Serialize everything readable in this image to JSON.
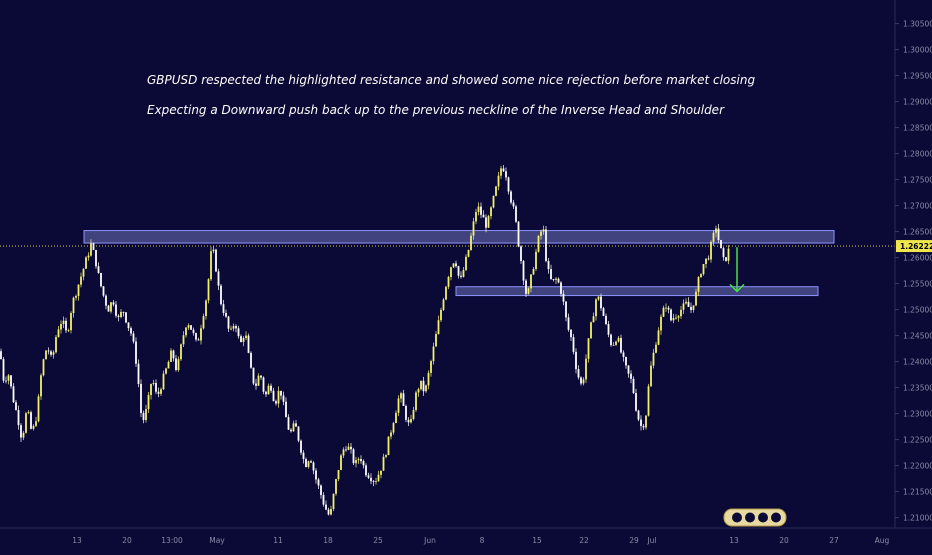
{
  "chart_data": {
    "type": "candlestick",
    "symbol": "GBPUSD",
    "ylim": [
      1.208,
      1.308
    ],
    "y_ticks": [
      "1.30500",
      "1.30000",
      "1.29500",
      "1.29000",
      "1.28500",
      "1.28000",
      "1.27500",
      "1.27000",
      "1.26500",
      "1.26000",
      "1.25500",
      "1.25000",
      "1.24500",
      "1.24000",
      "1.23500",
      "1.23000",
      "1.22500",
      "1.22000",
      "1.21500",
      "1.21000"
    ],
    "x_ticks": [
      "13",
      "20",
      "13:00",
      "May",
      "11",
      "18",
      "25",
      "Jun",
      "8",
      "15",
      "22",
      "29",
      "Jul",
      "13",
      "20",
      "27",
      "Aug"
    ],
    "last_price": "1.26222",
    "last_price_value": 1.26222,
    "annotations": [
      "GBPUSD respected the highlighted resistance and showed some nice rejection before market closing",
      "Expecting a Downward push back up to the previous neckline of the Inverse Head and Shoulder"
    ],
    "zones": [
      {
        "name": "resistance",
        "from": 1.2628,
        "to": 1.2652
      },
      {
        "name": "neckline",
        "from": 1.2527,
        "to": 1.2544
      }
    ],
    "path": [
      [
        0,
        1.242
      ],
      [
        4,
        1.236
      ],
      [
        8,
        1.238
      ],
      [
        13,
        1.233
      ],
      [
        18,
        1.229
      ],
      [
        22,
        1.225
      ],
      [
        27,
        1.231
      ],
      [
        32,
        1.226
      ],
      [
        37,
        1.23
      ],
      [
        42,
        1.239
      ],
      [
        47,
        1.243
      ],
      [
        52,
        1.24
      ],
      [
        57,
        1.246
      ],
      [
        62,
        1.248
      ],
      [
        67,
        1.245
      ],
      [
        72,
        1.251
      ],
      [
        77,
        1.254
      ],
      [
        82,
        1.257
      ],
      [
        87,
        1.26
      ],
      [
        91,
        1.2625
      ],
      [
        95,
        1.26
      ],
      [
        99,
        1.256
      ],
      [
        103,
        1.253
      ],
      [
        108,
        1.25
      ],
      [
        113,
        1.252
      ],
      [
        118,
        1.248
      ],
      [
        123,
        1.25
      ],
      [
        128,
        1.247
      ],
      [
        132,
        1.245
      ],
      [
        137,
        1.239
      ],
      [
        142,
        1.228
      ],
      [
        147,
        1.231
      ],
      [
        152,
        1.237
      ],
      [
        157,
        1.233
      ],
      [
        162,
        1.236
      ],
      [
        167,
        1.239
      ],
      [
        172,
        1.242
      ],
      [
        177,
        1.238
      ],
      [
        182,
        1.244
      ],
      [
        187,
        1.248
      ],
      [
        192,
        1.246
      ],
      [
        197,
        1.243
      ],
      [
        202,
        1.248
      ],
      [
        207,
        1.253
      ],
      [
        212,
        1.2625
      ],
      [
        216,
        1.258
      ],
      [
        220,
        1.252
      ],
      [
        225,
        1.249
      ],
      [
        230,
        1.245
      ],
      [
        235,
        1.248
      ],
      [
        240,
        1.243
      ],
      [
        245,
        1.246
      ],
      [
        250,
        1.239
      ],
      [
        255,
        1.235
      ],
      [
        260,
        1.238
      ],
      [
        265,
        1.233
      ],
      [
        270,
        1.236
      ],
      [
        275,
        1.232
      ],
      [
        280,
        1.235
      ],
      [
        285,
        1.23
      ],
      [
        290,
        1.226
      ],
      [
        295,
        1.228
      ],
      [
        300,
        1.224
      ],
      [
        305,
        1.22
      ],
      [
        310,
        1.222
      ],
      [
        315,
        1.218
      ],
      [
        320,
        1.215
      ],
      [
        325,
        1.212
      ],
      [
        330,
        1.21
      ],
      [
        335,
        1.216
      ],
      [
        340,
        1.221
      ],
      [
        345,
        1.224
      ],
      [
        350,
        1.223
      ],
      [
        355,
        1.22
      ],
      [
        360,
        1.222
      ],
      [
        365,
        1.219
      ],
      [
        370,
        1.218
      ],
      [
        375,
        1.217
      ],
      [
        380,
        1.219
      ],
      [
        385,
        1.222
      ],
      [
        390,
        1.226
      ],
      [
        395,
        1.23
      ],
      [
        400,
        1.234
      ],
      [
        405,
        1.23
      ],
      [
        410,
        1.227
      ],
      [
        415,
        1.233
      ],
      [
        420,
        1.236
      ],
      [
        425,
        1.234
      ],
      [
        430,
        1.239
      ],
      [
        435,
        1.244
      ],
      [
        440,
        1.249
      ],
      [
        445,
        1.254
      ],
      [
        450,
        1.258
      ],
      [
        455,
        1.26
      ],
      [
        460,
        1.255
      ],
      [
        464,
        1.258
      ],
      [
        468,
        1.261
      ],
      [
        472,
        1.265
      ],
      [
        477,
        1.27
      ],
      [
        482,
        1.268
      ],
      [
        487,
        1.266
      ],
      [
        492,
        1.27
      ],
      [
        497,
        1.274
      ],
      [
        502,
        1.278
      ],
      [
        506,
        1.276
      ],
      [
        510,
        1.272
      ],
      [
        515,
        1.268
      ],
      [
        519,
        1.262
      ],
      [
        523,
        1.257
      ],
      [
        527,
        1.252
      ],
      [
        531,
        1.256
      ],
      [
        535,
        1.26
      ],
      [
        539,
        1.264
      ],
      [
        543,
        1.266
      ],
      [
        547,
        1.258
      ],
      [
        552,
        1.255
      ],
      [
        557,
        1.256
      ],
      [
        562,
        1.253
      ],
      [
        567,
        1.247
      ],
      [
        572,
        1.244
      ],
      [
        577,
        1.238
      ],
      [
        582,
        1.235
      ],
      [
        587,
        1.242
      ],
      [
        592,
        1.248
      ],
      [
        597,
        1.253
      ],
      [
        602,
        1.25
      ],
      [
        607,
        1.246
      ],
      [
        612,
        1.243
      ],
      [
        617,
        1.245
      ],
      [
        622,
        1.241
      ],
      [
        627,
        1.238
      ],
      [
        632,
        1.236
      ],
      [
        637,
        1.23
      ],
      [
        642,
        1.227
      ],
      [
        646,
        1.23
      ],
      [
        650,
        1.238
      ],
      [
        654,
        1.242
      ],
      [
        658,
        1.246
      ],
      [
        662,
        1.249
      ],
      [
        666,
        1.251
      ],
      [
        671,
        1.248
      ],
      [
        676,
        1.249
      ],
      [
        681,
        1.25
      ],
      [
        686,
        1.251
      ],
      [
        691,
        1.25
      ],
      [
        696,
        1.253
      ],
      [
        700,
        1.257
      ],
      [
        704,
        1.259
      ],
      [
        708,
        1.26
      ],
      [
        712,
        1.263
      ],
      [
        716,
        1.266
      ],
      [
        720,
        1.262
      ],
      [
        724,
        1.259
      ],
      [
        728,
        1.261
      ],
      [
        730,
        1.2622
      ]
    ],
    "projection": {
      "from": 1.262,
      "to": 1.2535
    }
  },
  "colors": {
    "background": "#0b0a36",
    "candle_up": "#f4f06a",
    "candle_down": "#ffffff",
    "zone_fill": "#6e73b8",
    "zone_border": "#8e93ff",
    "price_line": "#f0e54a",
    "arrow": "#48e04a",
    "axis_text": "#8a8aa8"
  },
  "watermark_icon": "tradingview-badge-icon"
}
